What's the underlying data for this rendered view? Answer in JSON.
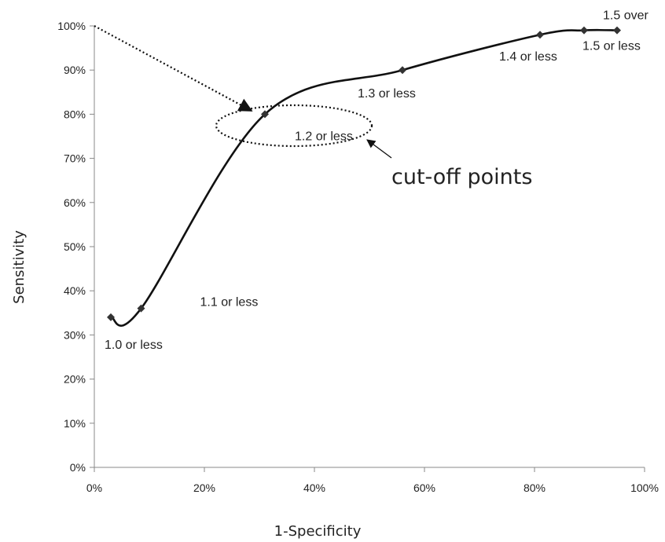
{
  "chart_data": {
    "type": "line",
    "title": "",
    "xlabel": "1-Specificity",
    "ylabel": "Sensitivity",
    "xlim": [
      0,
      1
    ],
    "ylim": [
      0,
      1
    ],
    "x_ticks": [
      "0%",
      "20%",
      "40%",
      "60%",
      "80%",
      "100%"
    ],
    "y_ticks": [
      "0%",
      "10%",
      "20%",
      "30%",
      "40%",
      "50%",
      "60%",
      "70%",
      "80%",
      "90%",
      "100%"
    ],
    "grid": false,
    "legend": "none",
    "series": [
      {
        "points": [
          {
            "x": 0.03,
            "y": 0.34,
            "label": "1.0  or less"
          },
          {
            "x": 0.085,
            "y": 0.36,
            "label": "1.1 or less"
          },
          {
            "x": 0.31,
            "y": 0.8,
            "label": "1.2 or less"
          },
          {
            "x": 0.56,
            "y": 0.9,
            "label": "1.3 or less"
          },
          {
            "x": 0.81,
            "y": 0.98,
            "label": "1.4 or less"
          },
          {
            "x": 0.89,
            "y": 0.99,
            "label": "1.5 or less"
          },
          {
            "x": 0.95,
            "y": 0.99,
            "label": "1.5 over"
          }
        ]
      }
    ],
    "annotation": "cut-off points",
    "colors": {
      "line": "#111111",
      "marker": "#333333",
      "text": "#222222"
    }
  }
}
